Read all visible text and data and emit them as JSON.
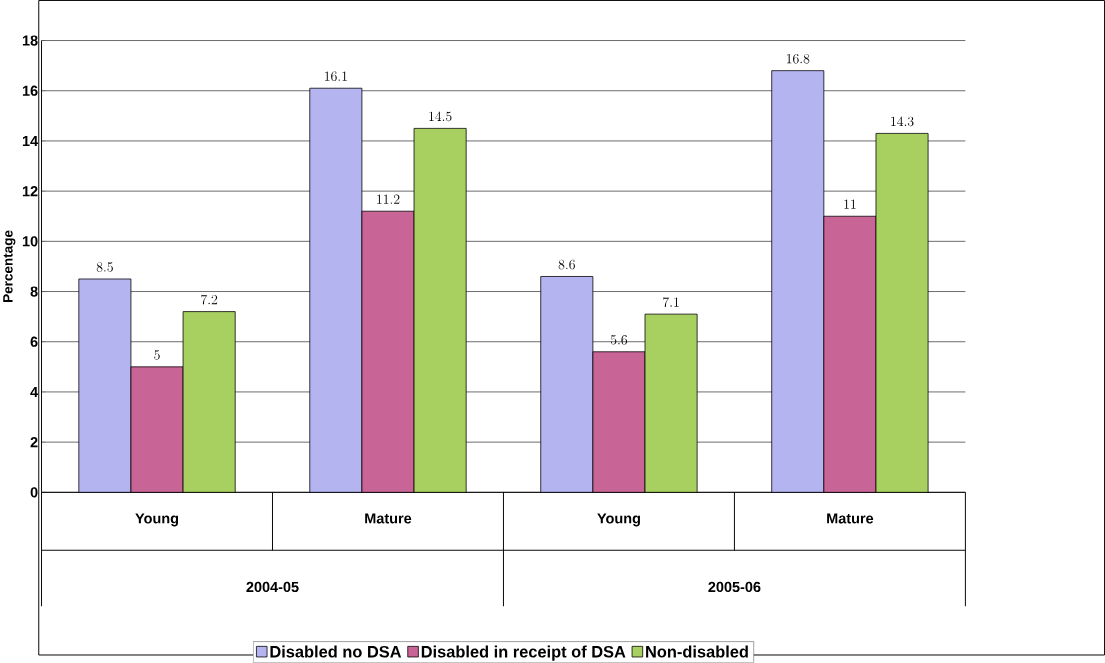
{
  "chart_data": {
    "type": "bar",
    "ylabel": "Percentage",
    "categories": [
      "Young",
      "Mature",
      "Young",
      "Mature"
    ],
    "series": [
      {
        "name": "Disabled no DSA",
        "color": "#b4b4f0",
        "values": [
          8.5,
          16.1,
          8.6,
          16.8
        ]
      },
      {
        "name": "Disabled in receipt of DSA",
        "color": "#c86496",
        "values": [
          5,
          11.2,
          5.6,
          11
        ]
      },
      {
        "name": "Non-disabled",
        "color": "#a8d060",
        "values": [
          7.2,
          14.5,
          7.1,
          14.3
        ]
      }
    ],
    "annotations": [
      "2004-05",
      "2005-06"
    ],
    "ylim": [
      0,
      18
    ],
    "yticks": [
      0,
      2,
      4,
      6,
      8,
      10,
      12,
      14,
      16,
      18
    ],
    "grid": "y",
    "legend": "bottom",
    "data_labels": true
  }
}
